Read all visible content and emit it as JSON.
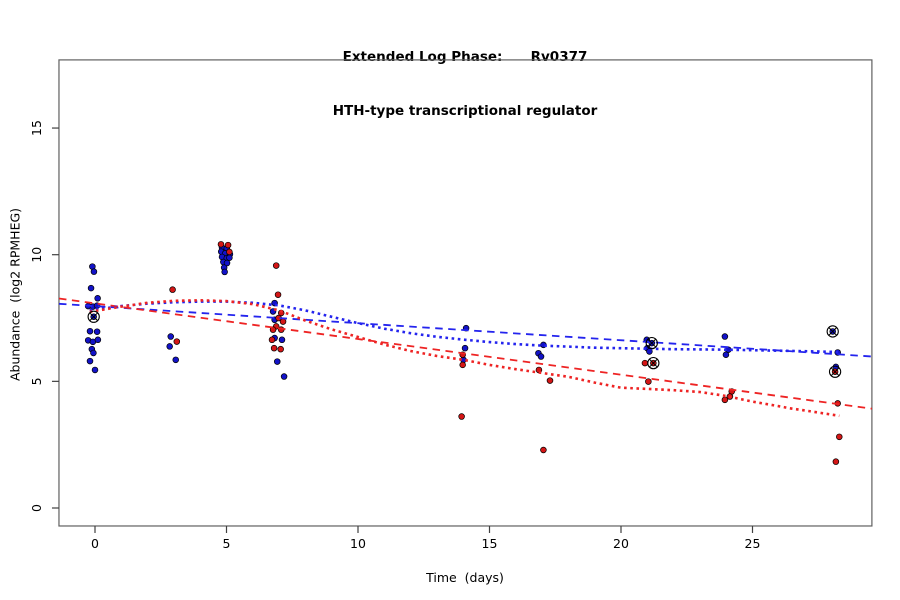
{
  "title": {
    "line1": "Extended Log Phase:      Rv0377",
    "line2": "HTH-type transcriptional regulator"
  },
  "chart_data": {
    "type": "scatter",
    "title": "Extended Log Phase:      Rv0377",
    "subtitle": "HTH-type transcriptional regulator",
    "xlabel": "Time  (days)",
    "ylabel": "Abundance  (log2 RPMHEG)",
    "xlim": [
      -1.37,
      29.54
    ],
    "ylim": [
      -0.71,
      17.69
    ],
    "x_ticks": [
      0,
      5,
      10,
      15,
      20,
      25
    ],
    "y_ticks": [
      0,
      5,
      10,
      15
    ],
    "grid": false,
    "legend": "none",
    "colors": {
      "blue": "#1212c8",
      "red": "#d41616",
      "line_blue": "#2424ee",
      "line_red": "#ee2424",
      "outlier_ring": "#000000",
      "box": "#606060",
      "tick": "#404040"
    },
    "series": [
      {
        "name": "blue-replicates",
        "color_key": "blue",
        "points": [
          [
            -0.1,
            9.53
          ],
          [
            -0.04,
            9.33
          ],
          [
            -0.15,
            8.68
          ],
          [
            0.1,
            8.28
          ],
          [
            -0.26,
            7.97
          ],
          [
            -0.08,
            7.95
          ],
          [
            0.08,
            7.99
          ],
          [
            -0.05,
            7.55
          ],
          [
            -0.19,
            6.98
          ],
          [
            0.08,
            6.96
          ],
          [
            -0.26,
            6.62
          ],
          [
            -0.08,
            6.56
          ],
          [
            0.11,
            6.64
          ],
          [
            -0.12,
            6.27
          ],
          [
            -0.06,
            6.12
          ],
          [
            -0.19,
            5.8
          ],
          [
            0.0,
            5.45
          ],
          [
            2.88,
            6.77
          ],
          [
            2.84,
            6.38
          ],
          [
            3.07,
            5.85
          ],
          [
            4.83,
            10.28
          ],
          [
            5.01,
            10.25
          ],
          [
            4.8,
            10.12
          ],
          [
            4.95,
            10.05
          ],
          [
            5.13,
            10.02
          ],
          [
            4.83,
            9.91
          ],
          [
            5.01,
            9.86
          ],
          [
            5.11,
            9.88
          ],
          [
            4.88,
            9.71
          ],
          [
            5.02,
            9.67
          ],
          [
            4.91,
            9.49
          ],
          [
            4.93,
            9.32
          ],
          [
            6.83,
            8.09
          ],
          [
            6.77,
            7.76
          ],
          [
            6.83,
            7.43
          ],
          [
            7.11,
            6.64
          ],
          [
            6.83,
            6.71
          ],
          [
            6.93,
            5.78
          ],
          [
            7.19,
            5.19
          ],
          [
            14.11,
            7.1
          ],
          [
            14.07,
            6.31
          ],
          [
            14.01,
            5.85
          ],
          [
            17.05,
            6.44
          ],
          [
            16.86,
            6.11
          ],
          [
            16.96,
            5.98
          ],
          [
            20.98,
            6.64
          ],
          [
            21.17,
            6.51
          ],
          [
            21.0,
            6.31
          ],
          [
            21.08,
            6.18
          ],
          [
            23.95,
            6.77
          ],
          [
            24.08,
            6.25
          ],
          [
            23.99,
            6.05
          ],
          [
            28.05,
            6.97
          ],
          [
            28.24,
            6.14
          ],
          [
            28.17,
            5.57
          ]
        ]
      },
      {
        "name": "red-replicates",
        "color_key": "red",
        "points": [
          [
            2.95,
            8.62
          ],
          [
            3.11,
            6.57
          ],
          [
            4.79,
            10.41
          ],
          [
            5.06,
            10.38
          ],
          [
            5.11,
            10.11
          ],
          [
            6.89,
            9.57
          ],
          [
            6.96,
            8.42
          ],
          [
            7.08,
            7.7
          ],
          [
            6.98,
            7.5
          ],
          [
            7.15,
            7.36
          ],
          [
            6.89,
            7.17
          ],
          [
            6.77,
            7.04
          ],
          [
            7.08,
            7.04
          ],
          [
            6.73,
            6.64
          ],
          [
            6.81,
            6.31
          ],
          [
            7.06,
            6.27
          ],
          [
            13.98,
            6.05
          ],
          [
            13.98,
            5.65
          ],
          [
            13.94,
            3.61
          ],
          [
            16.88,
            5.45
          ],
          [
            17.3,
            5.03
          ],
          [
            17.05,
            2.29
          ],
          [
            20.91,
            5.72
          ],
          [
            21.23,
            5.72
          ],
          [
            21.04,
            4.99
          ],
          [
            24.21,
            4.6
          ],
          [
            24.14,
            4.4
          ],
          [
            23.95,
            4.27
          ],
          [
            28.14,
            5.38
          ],
          [
            28.24,
            4.13
          ],
          [
            28.3,
            2.81
          ],
          [
            28.17,
            1.83
          ]
        ]
      }
    ],
    "outliers_circled": [
      [
        -0.05,
        7.55
      ],
      [
        21.17,
        6.51
      ],
      [
        21.23,
        5.72
      ],
      [
        28.05,
        6.97
      ],
      [
        28.14,
        5.38
      ]
    ],
    "trend_lines": [
      {
        "name": "blue-linear-fit",
        "style": "dashed",
        "color_key": "line_blue",
        "points": [
          [
            -1.37,
            8.06
          ],
          [
            29.54,
            5.98
          ]
        ]
      },
      {
        "name": "red-linear-fit",
        "style": "dashed",
        "color_key": "line_red",
        "points": [
          [
            -1.37,
            8.27
          ],
          [
            29.54,
            3.92
          ]
        ]
      },
      {
        "name": "blue-loess-fit",
        "style": "dotted",
        "color_key": "line_blue",
        "points": [
          [
            -0.2,
            7.8
          ],
          [
            1,
            7.97
          ],
          [
            2,
            8.07
          ],
          [
            3,
            8.12
          ],
          [
            4,
            8.15
          ],
          [
            5,
            8.15
          ],
          [
            6,
            8.1
          ],
          [
            7,
            8.0
          ],
          [
            8,
            7.8
          ],
          [
            9,
            7.55
          ],
          [
            10,
            7.3
          ],
          [
            11,
            7.08
          ],
          [
            12,
            6.9
          ],
          [
            13,
            6.76
          ],
          [
            14,
            6.65
          ],
          [
            15,
            6.55
          ],
          [
            16,
            6.47
          ],
          [
            17,
            6.41
          ],
          [
            18,
            6.37
          ],
          [
            19,
            6.33
          ],
          [
            20,
            6.31
          ],
          [
            21,
            6.29
          ],
          [
            22,
            6.27
          ],
          [
            23,
            6.26
          ],
          [
            24,
            6.25
          ],
          [
            25,
            6.23
          ],
          [
            26,
            6.21
          ],
          [
            27,
            6.19
          ],
          [
            28.3,
            6.16
          ]
        ]
      },
      {
        "name": "red-loess-fit",
        "style": "dotted",
        "color_key": "line_red",
        "points": [
          [
            -0.2,
            7.74
          ],
          [
            1,
            7.95
          ],
          [
            2,
            8.1
          ],
          [
            3,
            8.18
          ],
          [
            4,
            8.2
          ],
          [
            5,
            8.17
          ],
          [
            6,
            8.05
          ],
          [
            7,
            7.8
          ],
          [
            8,
            7.4
          ],
          [
            9,
            7.05
          ],
          [
            10,
            6.75
          ],
          [
            11,
            6.45
          ],
          [
            12,
            6.2
          ],
          [
            13,
            6.0
          ],
          [
            14,
            5.85
          ],
          [
            15,
            5.65
          ],
          [
            16,
            5.48
          ],
          [
            17,
            5.33
          ],
          [
            18,
            5.18
          ],
          [
            19,
            4.95
          ],
          [
            20,
            4.75
          ],
          [
            21,
            4.7
          ],
          [
            22,
            4.65
          ],
          [
            23,
            4.58
          ],
          [
            24,
            4.42
          ],
          [
            25,
            4.2
          ],
          [
            26,
            4.02
          ],
          [
            26.4,
            3.94
          ],
          [
            27,
            3.85
          ],
          [
            28.3,
            3.64
          ]
        ]
      }
    ]
  }
}
